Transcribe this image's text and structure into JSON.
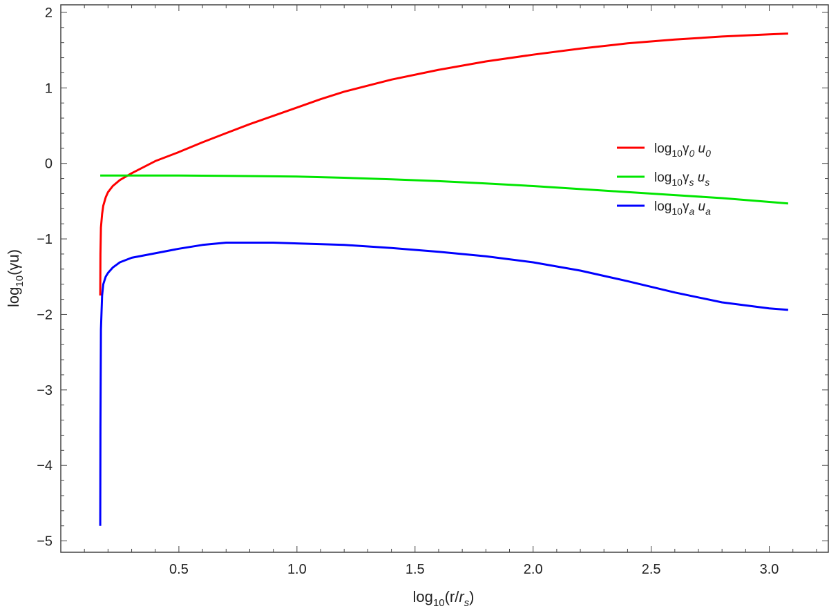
{
  "chart_data": {
    "type": "line",
    "xlabel": {
      "base": "log",
      "sub": "10",
      "rest_before": "(r/",
      "italic": "r",
      "italic_sub": "s",
      "rest_after": ")"
    },
    "ylabel": {
      "base": "log",
      "sub": "10",
      "rest": "(γu)"
    },
    "xlim": [
      0.0,
      3.25
    ],
    "ylim": [
      -5.15,
      2.1
    ],
    "x_ticks": [
      0.5,
      1.0,
      1.5,
      2.0,
      2.5,
      3.0
    ],
    "x_tick_labels": [
      "0.5",
      "1.0",
      "1.5",
      "2.0",
      "2.5",
      "3.0"
    ],
    "y_ticks": [
      -5,
      -4,
      -3,
      -2,
      -1,
      0,
      1,
      2
    ],
    "y_tick_labels": [
      "−5",
      "−4",
      "−3",
      "−2",
      "−1",
      "0",
      "1",
      "2"
    ],
    "grid": false,
    "legend_position": "right-middle",
    "series": [
      {
        "name": "log10γ0u0",
        "legend": {
          "base": "log",
          "sub": "10",
          "gamma": "γ",
          "gamma_sub": "0",
          "u": "u",
          "u_sub": "0"
        },
        "color": "#ff0000",
        "x": [
          0.167,
          0.168,
          0.17,
          0.175,
          0.18,
          0.19,
          0.2,
          0.22,
          0.25,
          0.3,
          0.4,
          0.5,
          0.6,
          0.7,
          0.8,
          0.9,
          1.0,
          1.1,
          1.2,
          1.4,
          1.6,
          1.8,
          2.0,
          2.2,
          2.4,
          2.6,
          2.8,
          3.0,
          3.08
        ],
        "y": [
          -1.75,
          -1.2,
          -0.85,
          -0.67,
          -0.56,
          -0.45,
          -0.38,
          -0.3,
          -0.22,
          -0.13,
          0.03,
          0.15,
          0.28,
          0.4,
          0.52,
          0.63,
          0.74,
          0.85,
          0.95,
          1.11,
          1.24,
          1.35,
          1.44,
          1.52,
          1.59,
          1.64,
          1.68,
          1.71,
          1.72
        ]
      },
      {
        "name": "log10γsus",
        "legend": {
          "base": "log",
          "sub": "10",
          "gamma": "γ",
          "gamma_sub": "s",
          "u": "u",
          "u_sub": "s"
        },
        "color": "#00e600",
        "x": [
          0.167,
          0.3,
          0.5,
          0.7,
          1.0,
          1.2,
          1.4,
          1.6,
          1.8,
          2.0,
          2.2,
          2.4,
          2.6,
          2.8,
          3.0,
          3.08
        ],
        "y": [
          -0.16,
          -0.16,
          -0.16,
          -0.165,
          -0.175,
          -0.19,
          -0.21,
          -0.235,
          -0.265,
          -0.3,
          -0.34,
          -0.38,
          -0.42,
          -0.46,
          -0.51,
          -0.53
        ]
      },
      {
        "name": "log10γaua",
        "legend": {
          "base": "log",
          "sub": "10",
          "gamma": "γ",
          "gamma_sub": "a",
          "u": "u",
          "u_sub": "a"
        },
        "color": "#0000ff",
        "x": [
          0.167,
          0.168,
          0.17,
          0.175,
          0.18,
          0.19,
          0.2,
          0.22,
          0.25,
          0.3,
          0.4,
          0.5,
          0.6,
          0.7,
          0.8,
          0.9,
          1.0,
          1.2,
          1.4,
          1.6,
          1.8,
          2.0,
          2.2,
          2.4,
          2.6,
          2.8,
          3.0,
          3.08
        ],
        "y": [
          -4.8,
          -3.5,
          -2.2,
          -1.75,
          -1.6,
          -1.5,
          -1.45,
          -1.38,
          -1.31,
          -1.25,
          -1.19,
          -1.13,
          -1.08,
          -1.05,
          -1.05,
          -1.05,
          -1.06,
          -1.08,
          -1.12,
          -1.17,
          -1.23,
          -1.31,
          -1.42,
          -1.56,
          -1.71,
          -1.84,
          -1.92,
          -1.94
        ]
      }
    ]
  }
}
